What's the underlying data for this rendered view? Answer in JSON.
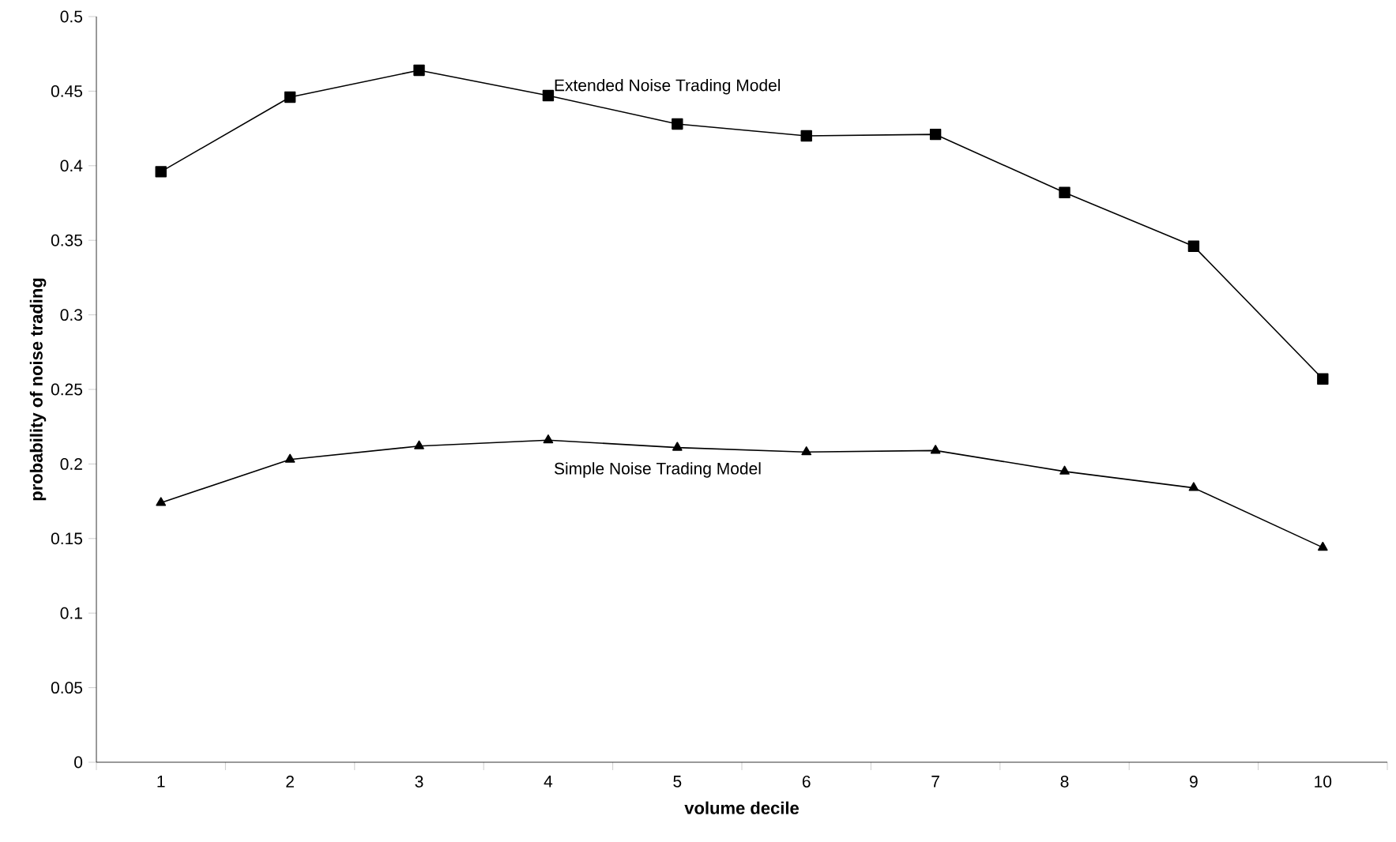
{
  "chart_data": {
    "type": "line",
    "xlabel": "volume decile",
    "ylabel": "probability of noise trading",
    "categories": [
      "1",
      "2",
      "3",
      "4",
      "5",
      "6",
      "7",
      "8",
      "9",
      "10"
    ],
    "series": [
      {
        "name": "Extended Noise Trading Model",
        "color": "#000000",
        "marker": "square",
        "values": [
          0.396,
          0.446,
          0.464,
          0.447,
          0.428,
          0.42,
          0.421,
          0.382,
          0.346,
          0.257
        ]
      },
      {
        "name": "Simple Noise Trading Model",
        "color": "#000000",
        "marker": "triangle",
        "values": [
          0.174,
          0.203,
          0.212,
          0.216,
          0.211,
          0.208,
          0.209,
          0.195,
          0.184,
          0.144
        ]
      }
    ],
    "ylim": [
      0,
      0.5
    ],
    "yticks": [
      0,
      0.05,
      0.1,
      0.15,
      0.2,
      0.25,
      0.3,
      0.35,
      0.4,
      0.45,
      0.5
    ],
    "line_style": "solid"
  }
}
